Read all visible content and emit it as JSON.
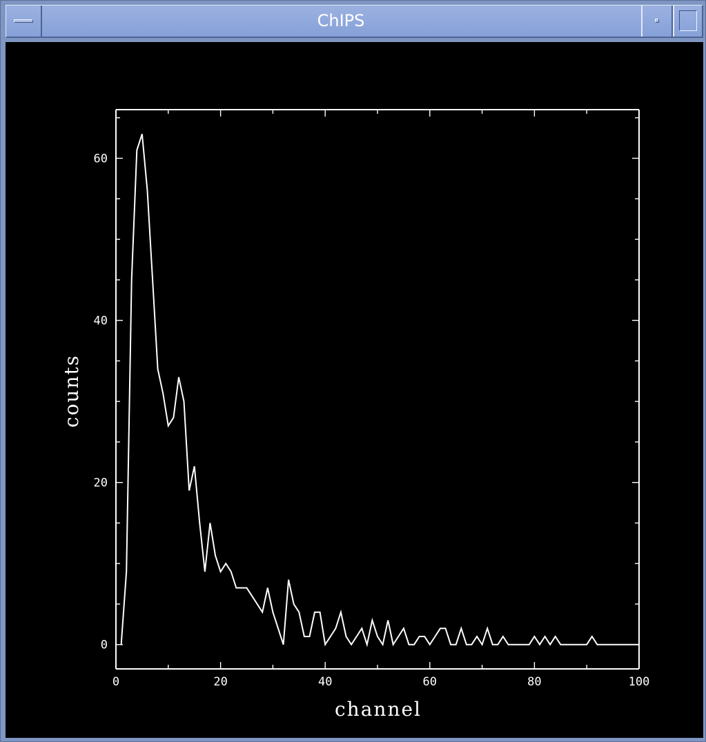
{
  "window": {
    "title": "ChIPS"
  },
  "icons": {
    "menu": "window-menu-icon",
    "minimize": "minimize-icon",
    "maximize": "maximize-icon"
  },
  "colors": {
    "titlebar": "#8ba4da",
    "plot_background": "#000000",
    "foreground": "#ffffff"
  },
  "chart_data": {
    "type": "line",
    "title": "",
    "xlabel": "channel",
    "ylabel": "counts",
    "xlim": [
      0,
      100
    ],
    "ylim": [
      -3,
      66
    ],
    "xticks": [
      0,
      20,
      40,
      60,
      80,
      100
    ],
    "yticks": [
      0,
      20,
      40,
      60
    ],
    "grid": false,
    "legend": "none",
    "x": [
      1,
      2,
      3,
      4,
      5,
      6,
      7,
      8,
      9,
      10,
      11,
      12,
      13,
      14,
      15,
      16,
      17,
      18,
      19,
      20,
      21,
      22,
      23,
      24,
      25,
      26,
      27,
      28,
      29,
      30,
      31,
      32,
      33,
      34,
      35,
      36,
      37,
      38,
      39,
      40,
      41,
      42,
      43,
      44,
      45,
      46,
      47,
      48,
      49,
      50,
      51,
      52,
      53,
      54,
      55,
      56,
      57,
      58,
      59,
      60,
      61,
      62,
      63,
      64,
      65,
      66,
      67,
      68,
      69,
      70,
      71,
      72,
      73,
      74,
      75,
      76,
      77,
      78,
      79,
      80,
      81,
      82,
      83,
      84,
      85,
      86,
      87,
      88,
      89,
      90,
      91,
      92,
      93,
      94,
      95,
      96,
      97,
      98,
      99,
      100
    ],
    "y": [
      0,
      9,
      45,
      61,
      63,
      56,
      45,
      34,
      31,
      27,
      28,
      33,
      30,
      19,
      22,
      15,
      9,
      15,
      11,
      9,
      10,
      9,
      7,
      7,
      7,
      6,
      5,
      4,
      7,
      4,
      2,
      0,
      8,
      5,
      4,
      1,
      1,
      4,
      4,
      0,
      1,
      2,
      4,
      1,
      0,
      1,
      2,
      0,
      3,
      1,
      0,
      3,
      0,
      1,
      2,
      0,
      0,
      1,
      1,
      0,
      1,
      2,
      2,
      0,
      0,
      2,
      0,
      0,
      1,
      0,
      2,
      0,
      0,
      1,
      0,
      0,
      0,
      0,
      0,
      1,
      0,
      1,
      0,
      1,
      0,
      0,
      0,
      0,
      0,
      0,
      1,
      0,
      0,
      0,
      0,
      0,
      0,
      0,
      0,
      0
    ]
  }
}
